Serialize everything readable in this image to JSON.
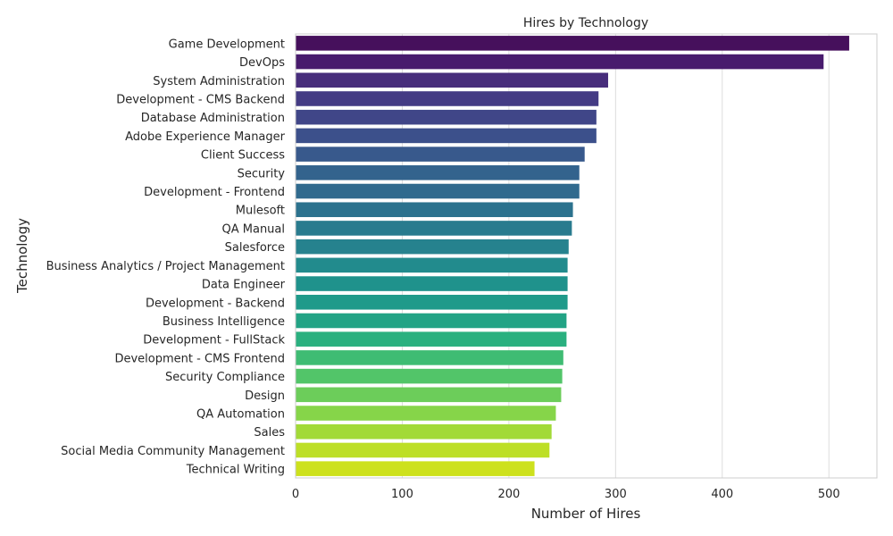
{
  "chart_data": {
    "type": "bar",
    "orientation": "horizontal",
    "title": "Hires by Technology",
    "xlabel": "Number of Hires",
    "ylabel": "Technology",
    "xlim": [
      0,
      545
    ],
    "xticks": [
      0,
      100,
      200,
      300,
      400,
      500
    ],
    "grid": "vertical",
    "palette": "viridis",
    "colors": [
      "#46105c",
      "#481b6d",
      "#472d7b",
      "#443b84",
      "#404688",
      "#3c508b",
      "#38598c",
      "#33638d",
      "#306a8e",
      "#2c728e",
      "#297b8e",
      "#26828e",
      "#228b8d",
      "#1f928c",
      "#1f9a8a",
      "#22a385",
      "#2ab07f",
      "#3fbc73",
      "#52c569",
      "#6ccd5a",
      "#86d549",
      "#a2da37",
      "#bddf26",
      "#cde11d"
    ],
    "categories": [
      "Game Development",
      "DevOps",
      "System Administration",
      "Development - CMS Backend",
      "Database Administration",
      "Adobe Experience Manager",
      "Client Success",
      "Security",
      "Development - Frontend",
      "Mulesoft",
      "QA Manual",
      "Salesforce",
      "Business Analytics / Project Management",
      "Data Engineer",
      "Development - Backend",
      "Business Intelligence",
      "Development - FullStack",
      "Development - CMS Frontend",
      "Security Compliance",
      "Design",
      "QA Automation",
      "Sales",
      "Social Media Community Management",
      "Technical Writing"
    ],
    "values": [
      519,
      495,
      293,
      284,
      282,
      282,
      271,
      266,
      266,
      260,
      259,
      256,
      255,
      255,
      255,
      254,
      254,
      251,
      250,
      249,
      244,
      240,
      238,
      224
    ]
  }
}
